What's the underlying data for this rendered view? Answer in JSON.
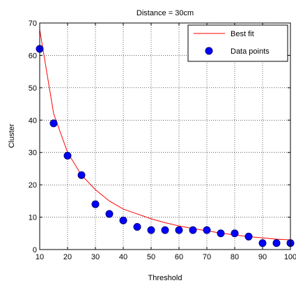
{
  "chart_data": {
    "type": "scatter",
    "title": "Distance = 30cm",
    "xlabel": "Threshold",
    "ylabel": "Cluster",
    "xlim": [
      10,
      100
    ],
    "ylim": [
      0,
      70
    ],
    "xticks": [
      10,
      20,
      30,
      40,
      50,
      60,
      70,
      80,
      90,
      100
    ],
    "xtick_labels": [
      "10",
      "20",
      "30",
      "40",
      "50",
      "60",
      "70",
      "80",
      "90",
      "100"
    ],
    "yticks": [
      0,
      10,
      20,
      30,
      40,
      50,
      60,
      70
    ],
    "ytick_labels": [
      "0",
      "10",
      "20",
      "30",
      "40",
      "50",
      "60",
      "70"
    ],
    "grid": true,
    "legend_position": "top-right",
    "series": [
      {
        "name": "Best fit",
        "kind": "line",
        "color": "#ff0000",
        "x": [
          10,
          15,
          20,
          25,
          30,
          35,
          40,
          45,
          50,
          55,
          60,
          65,
          70,
          75,
          80,
          85,
          90,
          95,
          100
        ],
        "y": [
          68,
          42,
          30,
          23,
          18.5,
          15,
          12.5,
          11,
          9.5,
          8.3,
          7.3,
          6.5,
          5.8,
          5.1,
          4.5,
          4,
          3.6,
          3.2,
          3
        ]
      },
      {
        "name": "Data points",
        "kind": "marker",
        "color": "#0000ff",
        "x": [
          10,
          15,
          20,
          25,
          30,
          35,
          40,
          45,
          50,
          55,
          60,
          65,
          70,
          75,
          80,
          85,
          90,
          95,
          100
        ],
        "y": [
          62,
          39,
          29,
          23,
          14,
          11,
          9,
          7,
          6,
          6,
          6,
          6,
          6,
          5,
          5,
          4,
          2,
          2,
          2
        ]
      }
    ]
  }
}
